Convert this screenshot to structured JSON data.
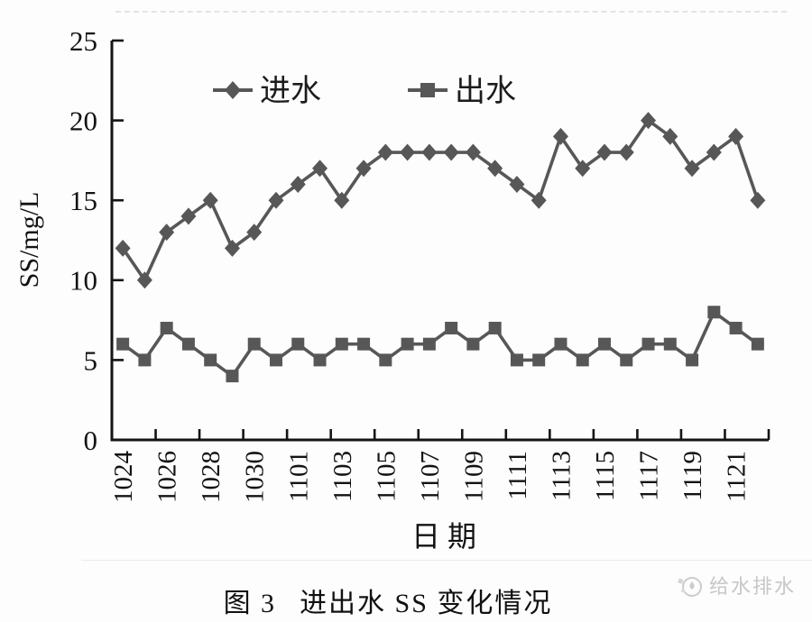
{
  "figure": {
    "caption_prefix": "图 3",
    "caption_title": "进出水 SS 变化情况",
    "x_axis_title": "日期",
    "y_axis_title": "SS/mg/L"
  },
  "legend": {
    "series1_label": "进水",
    "series2_label": "出水"
  },
  "watermark": {
    "text": "给水排水"
  },
  "chart_data": {
    "type": "line",
    "title": "图 3 进出水 SS 变化情况",
    "xlabel": "日期",
    "ylabel": "SS/mg/L",
    "ylim": [
      0,
      25
    ],
    "y_ticks": [
      0,
      5,
      10,
      15,
      20,
      25
    ],
    "grid": "off",
    "legend_position": "top-inside",
    "x": [
      "1024",
      "1025",
      "1026",
      "1027",
      "1028",
      "1029",
      "1030",
      "1031",
      "1101",
      "1102",
      "1103",
      "1104",
      "1105",
      "1106",
      "1107",
      "1108",
      "1109",
      "1110",
      "1111",
      "1112",
      "1113",
      "1114",
      "1115",
      "1116",
      "1117",
      "1118",
      "1119",
      "1120",
      "1121",
      "1122"
    ],
    "x_tick_labels": [
      "1024",
      "1026",
      "1028",
      "1030",
      "1101",
      "1103",
      "1105",
      "1107",
      "1109",
      "1111",
      "1113",
      "1115",
      "1117",
      "1119",
      "1121"
    ],
    "series": [
      {
        "name": "进水",
        "marker": "diamond",
        "values": [
          12,
          10,
          13,
          14,
          15,
          12,
          13,
          15,
          16,
          17,
          15,
          17,
          18,
          18,
          18,
          18,
          18,
          17,
          16,
          15,
          19,
          17,
          18,
          18,
          20,
          19,
          17,
          18,
          19,
          15
        ]
      },
      {
        "name": "出水",
        "marker": "square",
        "values": [
          6,
          5,
          7,
          6,
          5,
          4,
          6,
          5,
          6,
          5,
          6,
          6,
          5,
          6,
          6,
          7,
          6,
          7,
          5,
          5,
          6,
          5,
          6,
          5,
          6,
          6,
          5,
          8,
          7,
          6
        ]
      }
    ],
    "colors": {
      "series": "#575757",
      "axis": "#141414",
      "text": "#121212",
      "watermark": "#c7c7c7"
    }
  }
}
